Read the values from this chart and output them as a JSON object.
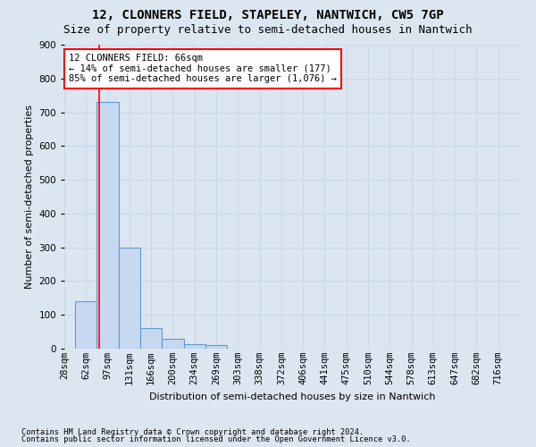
{
  "title": "12, CLONNERS FIELD, STAPELEY, NANTWICH, CW5 7GP",
  "subtitle": "Size of property relative to semi-detached houses in Nantwich",
  "xlabel": "Distribution of semi-detached houses by size in Nantwich",
  "ylabel": "Number of semi-detached properties",
  "footnote1": "Contains HM Land Registry data © Crown copyright and database right 2024.",
  "footnote2": "Contains public sector information licensed under the Open Government Licence v3.0.",
  "bin_labels": [
    "28sqm",
    "62sqm",
    "97sqm",
    "131sqm",
    "166sqm",
    "200sqm",
    "234sqm",
    "269sqm",
    "303sqm",
    "338sqm",
    "372sqm",
    "406sqm",
    "441sqm",
    "475sqm",
    "510sqm",
    "544sqm",
    "578sqm",
    "613sqm",
    "647sqm",
    "682sqm",
    "716sqm"
  ],
  "bar_heights": [
    140,
    730,
    300,
    60,
    28,
    13,
    10,
    0,
    0,
    0,
    0,
    0,
    0,
    0,
    0,
    0,
    0,
    0,
    0,
    0
  ],
  "bar_color": "#c6d9f0",
  "bar_edge_color": "#5b9bd5",
  "property_size_sqm": 66,
  "annotation_text1": "12 CLONNERS FIELD: 66sqm",
  "annotation_text2": "← 14% of semi-detached houses are smaller (177)",
  "annotation_text3": "85% of semi-detached houses are larger (1,076) →",
  "annotation_box_color": "white",
  "annotation_box_edge_color": "red",
  "vline_color": "red",
  "ylim": [
    0,
    900
  ],
  "yticks": [
    0,
    100,
    200,
    300,
    400,
    500,
    600,
    700,
    800,
    900
  ],
  "grid_color": "#c8d8ea",
  "bg_color": "#dce6f1",
  "plot_bg_color": "#dce6f1",
  "title_fontsize": 10,
  "subtitle_fontsize": 9,
  "axis_label_fontsize": 8,
  "tick_fontsize": 7.5,
  "annotation_fontsize": 7.5
}
